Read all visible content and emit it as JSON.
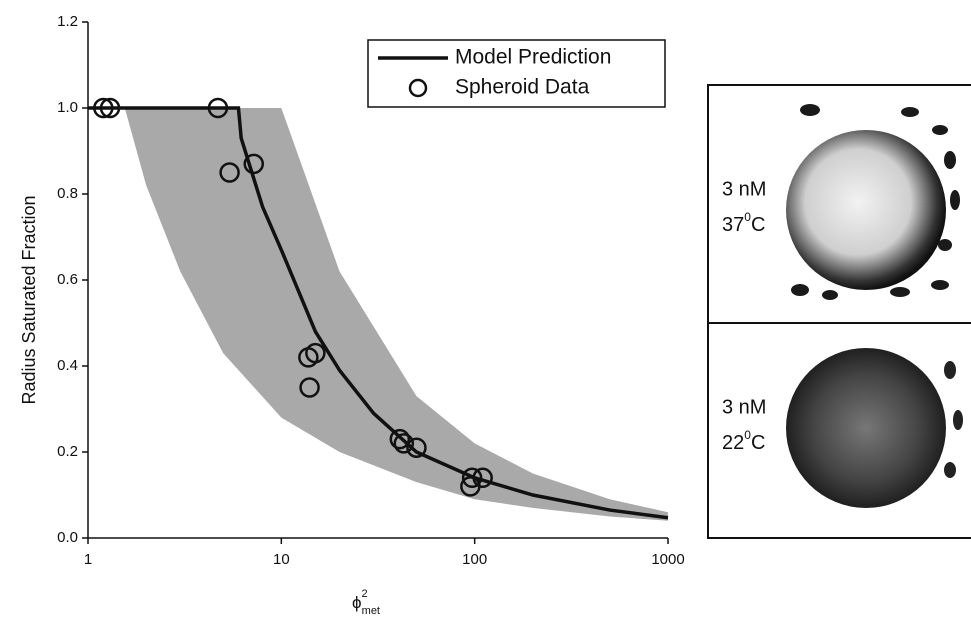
{
  "chart_data": {
    "type": "scatter",
    "y_label": "Radius Saturated Fraction",
    "x_label": "ϕ",
    "x_label_sup": "2",
    "x_label_sub": "met",
    "log_x": true,
    "xlim": [
      1,
      1000
    ],
    "xticks": [
      1,
      10,
      100,
      1000
    ],
    "ylim": [
      0,
      1.2
    ],
    "yticks": [
      {
        "value": 0,
        "label": "0.0"
      },
      0.2,
      0.4,
      0.6,
      0.8,
      {
        "value": 1,
        "label": "1.0"
      },
      1.2
    ],
    "legend_position": "top-right",
    "band": {
      "color": "#a9a9a9",
      "x": [
        1.55,
        2,
        3,
        5,
        10,
        20,
        50,
        100,
        200,
        500,
        1000
      ],
      "upper": [
        1,
        1,
        1,
        1,
        1,
        0.62,
        0.33,
        0.22,
        0.15,
        0.09,
        0.06
      ],
      "lower": [
        1,
        0.82,
        0.62,
        0.43,
        0.28,
        0.2,
        0.13,
        0.09,
        0.07,
        0.05,
        0.04
      ]
    },
    "series": [
      {
        "name": "Model Prediction",
        "type": "line",
        "color": "#111111",
        "x": [
          1,
          6,
          6.2,
          8,
          10,
          15,
          20,
          30,
          50,
          100,
          200,
          500,
          1000
        ],
        "values": [
          1,
          1,
          0.93,
          0.77,
          0.67,
          0.48,
          0.39,
          0.29,
          0.2,
          0.14,
          0.1,
          0.065,
          0.047
        ]
      },
      {
        "name": "Spheroid Data",
        "type": "scatter",
        "color": "#111111",
        "x": [
          1.2,
          1.3,
          4.7,
          5.4,
          7.2,
          13.8,
          15,
          14,
          41,
          43,
          50,
          95,
          97,
          110
        ],
        "values": [
          1,
          1,
          1,
          0.85,
          0.87,
          0.42,
          0.43,
          0.35,
          0.23,
          0.22,
          0.21,
          0.12,
          0.14,
          0.14
        ]
      }
    ],
    "panels": [
      {
        "line1": "3 nM",
        "temp": "37",
        "sup": "0",
        "unit": "C"
      },
      {
        "line1": "3 nM",
        "temp": "22",
        "sup": "0",
        "unit": "C"
      }
    ]
  }
}
